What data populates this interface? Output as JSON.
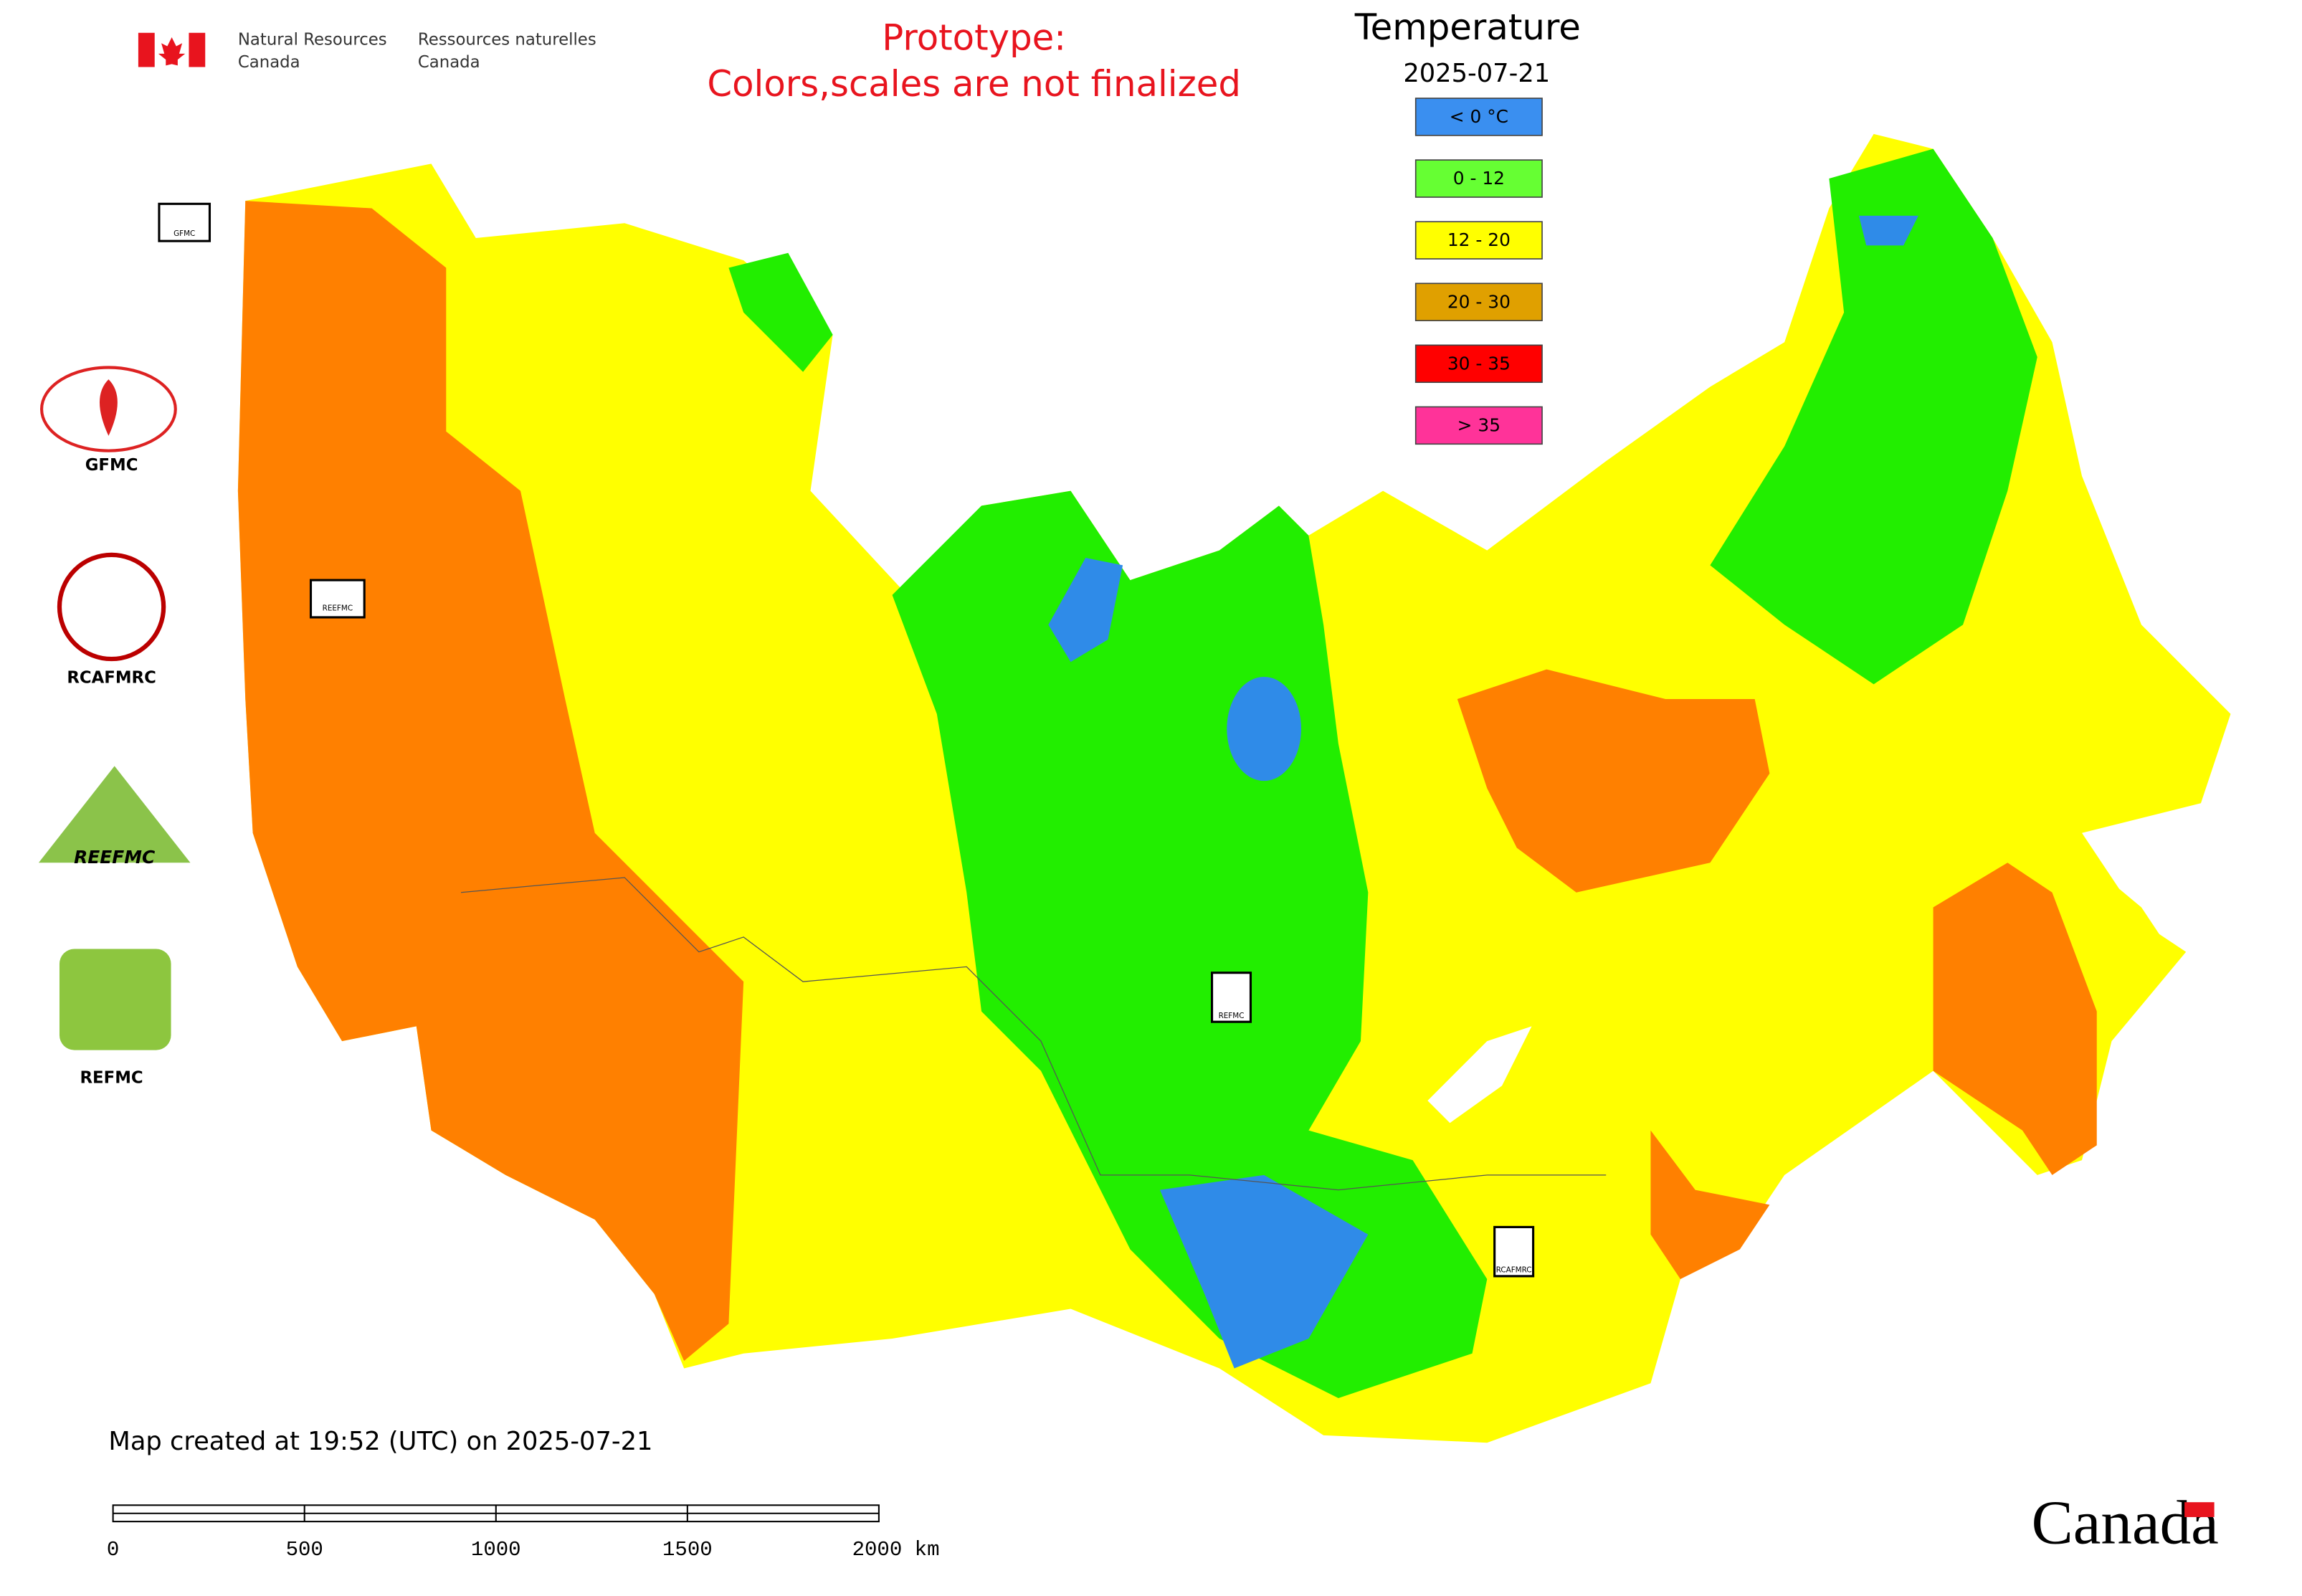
{
  "header": {
    "agency_en": [
      "Natural Resources",
      "Canada"
    ],
    "agency_fr": [
      "Ressources naturelles",
      "Canada"
    ],
    "notice": [
      "Prototype:",
      "Colors,scales are not finalized"
    ]
  },
  "legend": {
    "title": "Temperature",
    "date": "2025-07-21",
    "items": [
      {
        "label": "< 0 °C",
        "color": "#3a8ff0"
      },
      {
        "label": "0 - 12",
        "color": "#66ff33"
      },
      {
        "label": "12 - 20",
        "color": "#ffff00"
      },
      {
        "label": "20 - 30",
        "color": "#e0a000"
      },
      {
        "label": "30 - 35",
        "color": "#ff0000"
      },
      {
        "label": "> 35",
        "color": "#ff3399"
      }
    ]
  },
  "logos": [
    "GFMC",
    "RCAFMRC",
    "REEFMC",
    "REFMC"
  ],
  "map_markers": [
    "GFMC",
    "REEFMC",
    "REFMC",
    "RCAFMRC"
  ],
  "footer": {
    "created": "Map created at 19:52 (UTC) on 2025-07-21",
    "scale_labels": [
      "0",
      "500",
      "1000",
      "1500",
      "2000 km"
    ],
    "wordmark": "Canada"
  }
}
